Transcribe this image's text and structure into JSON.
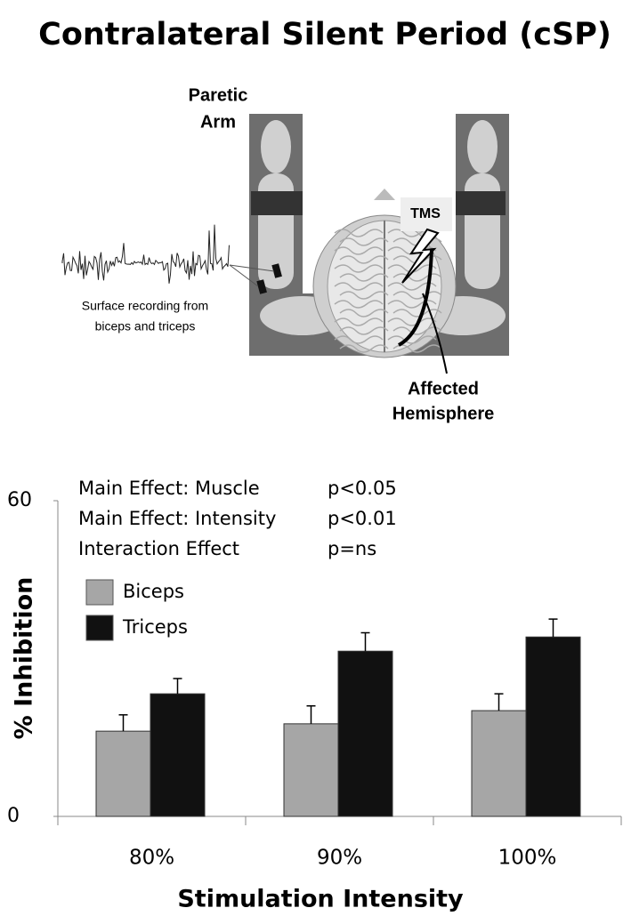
{
  "title": "Contralateral Silent Period (cSP)",
  "diagram": {
    "paretic_arm": [
      "Paretic",
      "Arm"
    ],
    "tms": "TMS",
    "recording": [
      "Surface recording from",
      "biceps and triceps"
    ],
    "affected": [
      "Affected",
      "Hemisphere"
    ]
  },
  "chart_data": {
    "type": "bar",
    "x_label": "Stimulation Intensity",
    "y_label": "% Inhibition",
    "categories": [
      "80%",
      "90%",
      "100%"
    ],
    "series": [
      {
        "name": "Biceps",
        "color": "#a6a6a6",
        "values": [
          16.2,
          17.6,
          20.1
        ],
        "errors": [
          3.1,
          3.4,
          3.2
        ]
      },
      {
        "name": "Triceps",
        "color": "#111111",
        "values": [
          23.3,
          31.4,
          34.1
        ],
        "errors": [
          2.9,
          3.5,
          3.4
        ]
      }
    ],
    "ylim": [
      0,
      60
    ],
    "yticks": [
      0,
      60
    ],
    "annotations": [
      {
        "label": "Main Effect: Muscle",
        "p": "p<0.05"
      },
      {
        "label": "Main Effect: Intensity",
        "p": "p<0.01"
      },
      {
        "label": "Interaction Effect",
        "p": "p=ns"
      }
    ]
  }
}
